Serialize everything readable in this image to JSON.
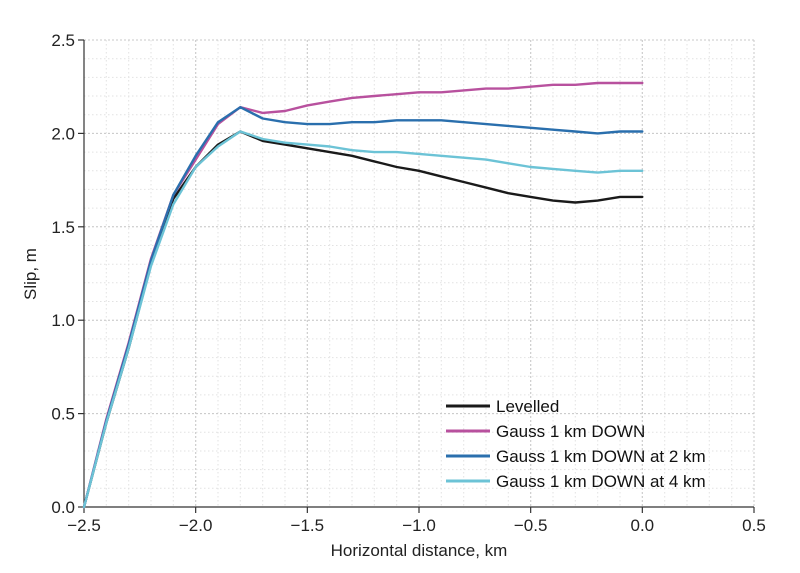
{
  "chart_data": {
    "type": "line",
    "xlabel": "Horizontal distance, km",
    "ylabel": "Slip, m",
    "xlim": [
      -2.5,
      0.5
    ],
    "ylim": [
      0.0,
      2.5
    ],
    "x_ticks": [
      -2.5,
      -2.0,
      -1.5,
      -1.0,
      -0.5,
      0.0,
      0.5
    ],
    "x_tick_labels": [
      "−2.5",
      "−2.0",
      "−1.5",
      "−1.0",
      "−0.5",
      "0.0",
      "0.5"
    ],
    "y_ticks": [
      0.0,
      0.5,
      1.0,
      1.5,
      2.0,
      2.5
    ],
    "y_tick_labels": [
      "0.0",
      "0.5",
      "1.0",
      "1.5",
      "2.0",
      "2.5"
    ],
    "grid": true,
    "legend_position": "bottom-right",
    "series": [
      {
        "name": "Levelled",
        "color": "#1a1a1a",
        "points": [
          [
            -2.5,
            0.0
          ],
          [
            -2.4,
            0.45
          ],
          [
            -2.3,
            0.85
          ],
          [
            -2.2,
            1.3
          ],
          [
            -2.1,
            1.65
          ],
          [
            -2.0,
            1.82
          ],
          [
            -1.9,
            1.94
          ],
          [
            -1.8,
            2.01
          ],
          [
            -1.7,
            1.96
          ],
          [
            -1.6,
            1.94
          ],
          [
            -1.5,
            1.92
          ],
          [
            -1.4,
            1.9
          ],
          [
            -1.3,
            1.88
          ],
          [
            -1.2,
            1.85
          ],
          [
            -1.1,
            1.82
          ],
          [
            -1.0,
            1.8
          ],
          [
            -0.9,
            1.77
          ],
          [
            -0.8,
            1.74
          ],
          [
            -0.7,
            1.71
          ],
          [
            -0.6,
            1.68
          ],
          [
            -0.5,
            1.66
          ],
          [
            -0.4,
            1.64
          ],
          [
            -0.3,
            1.63
          ],
          [
            -0.2,
            1.64
          ],
          [
            -0.1,
            1.66
          ],
          [
            0.0,
            1.66
          ]
        ]
      },
      {
        "name": "Gauss 1 km DOWN",
        "color": "#b8519e",
        "points": [
          [
            -2.5,
            0.0
          ],
          [
            -2.4,
            0.47
          ],
          [
            -2.3,
            0.88
          ],
          [
            -2.2,
            1.33
          ],
          [
            -2.1,
            1.67
          ],
          [
            -2.0,
            1.86
          ],
          [
            -1.9,
            2.05
          ],
          [
            -1.8,
            2.14
          ],
          [
            -1.7,
            2.11
          ],
          [
            -1.6,
            2.12
          ],
          [
            -1.5,
            2.15
          ],
          [
            -1.4,
            2.17
          ],
          [
            -1.3,
            2.19
          ],
          [
            -1.2,
            2.2
          ],
          [
            -1.1,
            2.21
          ],
          [
            -1.0,
            2.22
          ],
          [
            -0.9,
            2.22
          ],
          [
            -0.8,
            2.23
          ],
          [
            -0.7,
            2.24
          ],
          [
            -0.6,
            2.24
          ],
          [
            -0.5,
            2.25
          ],
          [
            -0.4,
            2.26
          ],
          [
            -0.3,
            2.26
          ],
          [
            -0.2,
            2.27
          ],
          [
            -0.1,
            2.27
          ],
          [
            0.0,
            2.27
          ]
        ]
      },
      {
        "name": "Gauss 1 km DOWN at 2 km",
        "color": "#2a6fad",
        "points": [
          [
            -2.5,
            0.0
          ],
          [
            -2.4,
            0.46
          ],
          [
            -2.3,
            0.87
          ],
          [
            -2.2,
            1.32
          ],
          [
            -2.1,
            1.67
          ],
          [
            -2.0,
            1.88
          ],
          [
            -1.9,
            2.06
          ],
          [
            -1.8,
            2.14
          ],
          [
            -1.7,
            2.08
          ],
          [
            -1.6,
            2.06
          ],
          [
            -1.5,
            2.05
          ],
          [
            -1.4,
            2.05
          ],
          [
            -1.3,
            2.06
          ],
          [
            -1.2,
            2.06
          ],
          [
            -1.1,
            2.07
          ],
          [
            -1.0,
            2.07
          ],
          [
            -0.9,
            2.07
          ],
          [
            -0.8,
            2.06
          ],
          [
            -0.7,
            2.05
          ],
          [
            -0.6,
            2.04
          ],
          [
            -0.5,
            2.03
          ],
          [
            -0.4,
            2.02
          ],
          [
            -0.3,
            2.01
          ],
          [
            -0.2,
            2.0
          ],
          [
            -0.1,
            2.01
          ],
          [
            0.0,
            2.01
          ]
        ]
      },
      {
        "name": "Gauss 1 km DOWN at 4 km",
        "color": "#6cc3d6",
        "points": [
          [
            -2.5,
            0.0
          ],
          [
            -2.4,
            0.45
          ],
          [
            -2.3,
            0.85
          ],
          [
            -2.2,
            1.29
          ],
          [
            -2.1,
            1.62
          ],
          [
            -2.0,
            1.82
          ],
          [
            -1.9,
            1.93
          ],
          [
            -1.8,
            2.01
          ],
          [
            -1.7,
            1.97
          ],
          [
            -1.6,
            1.95
          ],
          [
            -1.5,
            1.94
          ],
          [
            -1.4,
            1.93
          ],
          [
            -1.3,
            1.91
          ],
          [
            -1.2,
            1.9
          ],
          [
            -1.1,
            1.9
          ],
          [
            -1.0,
            1.89
          ],
          [
            -0.9,
            1.88
          ],
          [
            -0.8,
            1.87
          ],
          [
            -0.7,
            1.86
          ],
          [
            -0.6,
            1.84
          ],
          [
            -0.5,
            1.82
          ],
          [
            -0.4,
            1.81
          ],
          [
            -0.3,
            1.8
          ],
          [
            -0.2,
            1.79
          ],
          [
            -0.1,
            1.8
          ],
          [
            0.0,
            1.8
          ]
        ]
      }
    ]
  }
}
